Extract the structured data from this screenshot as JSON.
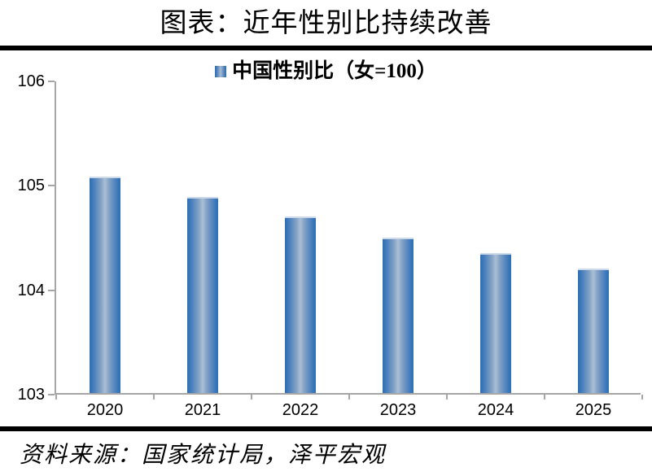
{
  "header": {
    "title": "图表：近年性别比持续改善"
  },
  "legend": {
    "label": "中国性别比（女=100）",
    "swatch_color_edge": "#2f6eb6",
    "swatch_color_center": "#aabfd5"
  },
  "chart_data": {
    "type": "bar",
    "title": "图表：近年性别比持续改善",
    "legend_entries": [
      "中国性别比（女=100）"
    ],
    "legend_position": "top-center",
    "categories": [
      "2020",
      "2021",
      "2022",
      "2023",
      "2024",
      "2025"
    ],
    "values": [
      105.07,
      104.88,
      104.69,
      104.49,
      104.34,
      104.19
    ],
    "xlabel": "",
    "ylabel": "",
    "ylim": [
      103,
      106
    ],
    "yticks": [
      103,
      104,
      105,
      106
    ],
    "grid": false,
    "bar_color_edge": "#2f6eb6",
    "bar_color_center": "#aabfd5",
    "axis_color": "#a6a6a6"
  },
  "footer": {
    "source": "资料来源：国家统计局，泽平宏观"
  },
  "colors": {
    "rule": "#000000",
    "axis": "#a6a6a6",
    "text": "#000000",
    "background": "#ffffff"
  }
}
